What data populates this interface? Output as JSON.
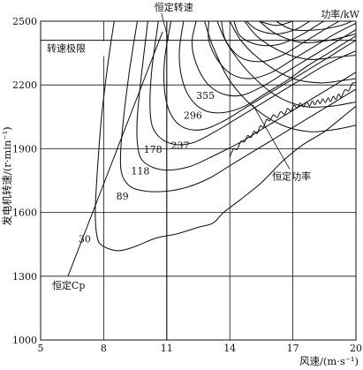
{
  "chart_data": {
    "type": "line",
    "xlabel": "风速/(m·s⁻¹)",
    "ylabel": "发电机转速/(r·min⁻¹)",
    "series_unit_label": "功率/kW",
    "xlim": [
      5,
      20
    ],
    "ylim": [
      1000,
      2500
    ],
    "x_ticks": [
      5,
      8,
      11,
      14,
      17,
      20
    ],
    "y_ticks": [
      1000,
      1300,
      1600,
      1900,
      2200,
      2500
    ],
    "grid": true,
    "reference_lines": [
      {
        "name": "转速极限",
        "type": "horizontal",
        "y": 2410
      },
      {
        "name": "恒定转速",
        "type": "vertical",
        "x": 11
      },
      {
        "name": "恒定Cp",
        "type": "line",
        "points": [
          [
            6.3,
            1300
          ],
          [
            10.8,
            2450
          ]
        ]
      }
    ],
    "annotations": [
      {
        "text": "恒定功率",
        "points_to": [
          16.6,
          1820
        ]
      }
    ],
    "contours": [
      {
        "name": "30",
        "points": [
          [
            8.5,
            2500
          ],
          [
            8.2,
            2300
          ],
          [
            7.9,
            2050
          ],
          [
            7.7,
            1800
          ],
          [
            7.6,
            1600
          ],
          [
            7.7,
            1480
          ],
          [
            8.0,
            1440
          ],
          [
            8.7,
            1420
          ],
          [
            9.5,
            1440
          ],
          [
            10.5,
            1480
          ],
          [
            11.5,
            1500
          ],
          [
            12.5,
            1530
          ],
          [
            13.2,
            1550
          ],
          [
            13.7,
            1600
          ],
          [
            14.5,
            1660
          ],
          [
            15.5,
            1740
          ],
          [
            16.5,
            1840
          ],
          [
            17.5,
            1920
          ],
          [
            18.5,
            1980
          ],
          [
            19.5,
            2060
          ],
          [
            20,
            2100
          ]
        ]
      },
      {
        "name": "89",
        "points": [
          [
            9.6,
            2500
          ],
          [
            9.2,
            2250
          ],
          [
            8.9,
            2000
          ],
          [
            8.8,
            1850
          ],
          [
            8.9,
            1770
          ],
          [
            9.3,
            1720
          ],
          [
            10,
            1700
          ],
          [
            11,
            1700
          ],
          [
            12,
            1720
          ],
          [
            13,
            1760
          ],
          [
            14,
            1820
          ],
          [
            15,
            1880
          ],
          [
            16,
            1940
          ],
          [
            17,
            2000
          ],
          [
            18,
            2060
          ],
          [
            19,
            2120
          ],
          [
            20,
            2180
          ]
        ]
      },
      {
        "name": "118",
        "points": [
          [
            10.1,
            2500
          ],
          [
            9.8,
            2250
          ],
          [
            9.6,
            2050
          ],
          [
            9.6,
            1930
          ],
          [
            9.8,
            1850
          ],
          [
            10.4,
            1810
          ],
          [
            11.2,
            1800
          ],
          [
            12.2,
            1820
          ],
          [
            13.3,
            1870
          ],
          [
            14.5,
            1930
          ],
          [
            15.5,
            1990
          ],
          [
            16.5,
            2050
          ],
          [
            17.5,
            2110
          ],
          [
            18.5,
            2170
          ],
          [
            19.5,
            2230
          ],
          [
            20,
            2260
          ]
        ]
      },
      {
        "name": "178",
        "points": [
          [
            10.6,
            2500
          ],
          [
            10.3,
            2280
          ],
          [
            10.2,
            2120
          ],
          [
            10.3,
            2010
          ],
          [
            10.7,
            1950
          ],
          [
            11.4,
            1920
          ],
          [
            12.3,
            1930
          ],
          [
            13.3,
            1980
          ],
          [
            14.3,
            2040
          ],
          [
            15.3,
            2100
          ],
          [
            16.3,
            2160
          ],
          [
            17.3,
            2220
          ],
          [
            18.3,
            2280
          ],
          [
            19.3,
            2330
          ],
          [
            20,
            2360
          ]
        ]
      },
      {
        "name": "237",
        "points": [
          [
            11.2,
            2500
          ],
          [
            10.9,
            2320
          ],
          [
            10.9,
            2170
          ],
          [
            11.2,
            2060
          ],
          [
            11.8,
            2000
          ],
          [
            12.7,
            1990
          ],
          [
            13.7,
            2030
          ],
          [
            14.7,
            2090
          ],
          [
            15.7,
            2150
          ],
          [
            16.7,
            2210
          ],
          [
            17.7,
            2270
          ],
          [
            18.7,
            2330
          ],
          [
            19.5,
            2380
          ],
          [
            20,
            2410
          ]
        ]
      },
      {
        "name": "296",
        "points": [
          [
            11.8,
            2500
          ],
          [
            11.6,
            2360
          ],
          [
            11.7,
            2240
          ],
          [
            12.1,
            2140
          ],
          [
            12.8,
            2080
          ],
          [
            13.7,
            2070
          ],
          [
            14.7,
            2100
          ],
          [
            15.7,
            2160
          ],
          [
            16.7,
            2220
          ],
          [
            17.7,
            2290
          ],
          [
            18.7,
            2350
          ],
          [
            19.5,
            2400
          ],
          [
            20,
            2430
          ]
        ]
      },
      {
        "name": "355",
        "points": [
          [
            12.4,
            2500
          ],
          [
            12.2,
            2400
          ],
          [
            12.4,
            2300
          ],
          [
            12.9,
            2210
          ],
          [
            13.6,
            2160
          ],
          [
            14.5,
            2150
          ],
          [
            15.5,
            2190
          ],
          [
            16.5,
            2250
          ],
          [
            17.5,
            2310
          ],
          [
            18.5,
            2370
          ],
          [
            19.5,
            2430
          ],
          [
            20,
            2460
          ]
        ]
      },
      {
        "name": "",
        "points": [
          [
            13.0,
            2500
          ],
          [
            13.0,
            2410
          ],
          [
            13.4,
            2320
          ],
          [
            14.1,
            2250
          ],
          [
            15.0,
            2230
          ],
          [
            16.0,
            2260
          ],
          [
            17.0,
            2320
          ],
          [
            18.0,
            2380
          ],
          [
            19.0,
            2440
          ],
          [
            20,
            2490
          ]
        ]
      },
      {
        "name": "",
        "points": [
          [
            13.6,
            2500
          ],
          [
            13.8,
            2410
          ],
          [
            14.5,
            2330
          ],
          [
            15.5,
            2310
          ],
          [
            16.5,
            2340
          ],
          [
            17.5,
            2400
          ],
          [
            18.5,
            2460
          ],
          [
            19.2,
            2500
          ]
        ]
      },
      {
        "name": "",
        "points": [
          [
            14.2,
            2500
          ],
          [
            14.5,
            2430
          ],
          [
            15.3,
            2390
          ],
          [
            16.3,
            2390
          ],
          [
            17.3,
            2430
          ],
          [
            18.3,
            2490
          ],
          [
            18.5,
            2500
          ]
        ]
      },
      {
        "name": "",
        "points": [
          [
            14.8,
            2500
          ],
          [
            15.3,
            2460
          ],
          [
            16.2,
            2440
          ],
          [
            17.1,
            2460
          ],
          [
            17.8,
            2500
          ]
        ]
      },
      {
        "name": "",
        "points": [
          [
            15.4,
            2500
          ],
          [
            16.2,
            2480
          ],
          [
            17.0,
            2500
          ]
        ]
      },
      {
        "name": "",
        "points": [
          [
            12.8,
            2500
          ],
          [
            13.2,
            2380
          ],
          [
            14.0,
            2220
          ],
          [
            15.2,
            2090
          ],
          [
            16.5,
            2010
          ],
          [
            17.8,
            1980
          ],
          [
            19,
            1990
          ],
          [
            20,
            2010
          ]
        ]
      },
      {
        "name": "",
        "points": [
          [
            13.4,
            2500
          ],
          [
            13.9,
            2390
          ],
          [
            14.9,
            2260
          ],
          [
            16.2,
            2150
          ],
          [
            17.5,
            2100
          ],
          [
            18.8,
            2100
          ],
          [
            20,
            2120
          ]
        ]
      },
      {
        "name": "",
        "points": [
          [
            14.0,
            2500
          ],
          [
            14.6,
            2400
          ],
          [
            15.7,
            2300
          ],
          [
            17.0,
            2230
          ],
          [
            18.3,
            2210
          ],
          [
            19.3,
            2220
          ],
          [
            20,
            2230
          ]
        ]
      },
      {
        "name": "",
        "points": [
          [
            14.7,
            2500
          ],
          [
            15.4,
            2420
          ],
          [
            16.6,
            2350
          ],
          [
            17.8,
            2320
          ],
          [
            19.0,
            2330
          ],
          [
            20,
            2340
          ]
        ]
      },
      {
        "name": "",
        "points": [
          [
            15.4,
            2500
          ],
          [
            16.2,
            2440
          ],
          [
            17.4,
            2400
          ],
          [
            18.7,
            2410
          ],
          [
            20,
            2440
          ]
        ]
      },
      {
        "name": "",
        "points": [
          [
            16.2,
            2500
          ],
          [
            17.0,
            2460
          ],
          [
            18.2,
            2460
          ],
          [
            19.3,
            2480
          ],
          [
            19.8,
            2500
          ]
        ]
      }
    ],
    "right_boundary": [
      [
        14.0,
        1870
      ],
      [
        14.7,
        1940
      ],
      [
        15.3,
        1980
      ],
      [
        15.9,
        2040
      ],
      [
        16.6,
        2070
      ],
      [
        17.2,
        2100
      ],
      [
        17.8,
        2110
      ],
      [
        18.3,
        2120
      ],
      [
        18.8,
        2130
      ],
      [
        19.3,
        2150
      ],
      [
        20,
        2210
      ]
    ],
    "labels": [
      {
        "text": "30",
        "x": 6.8,
        "y": 1460
      },
      {
        "text": "89",
        "x": 8.6,
        "y": 1660
      },
      {
        "text": "118",
        "x": 9.3,
        "y": 1780
      },
      {
        "text": "178",
        "x": 9.9,
        "y": 1880
      },
      {
        "text": "237",
        "x": 11.2,
        "y": 1900
      },
      {
        "text": "296",
        "x": 11.8,
        "y": 2040
      },
      {
        "text": "355",
        "x": 12.4,
        "y": 2135
      }
    ]
  }
}
